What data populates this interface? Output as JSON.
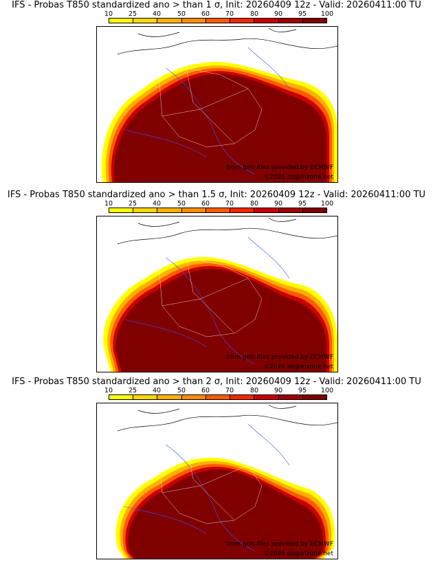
{
  "colorbar": {
    "labels": [
      "10",
      "25",
      "40",
      "50",
      "60",
      "70",
      "80",
      "90",
      "95",
      "100"
    ],
    "colors": [
      "#ffff00",
      "#ffd700",
      "#ffb000",
      "#ff8c00",
      "#ff5a00",
      "#f02800",
      "#c80000",
      "#a00000",
      "#800000"
    ]
  },
  "panels": [
    {
      "title": "IFS - Probas T850  standardized ano > than 1 σ, Init: 20260409 12z - Valid: 20260411:00 TU",
      "threshold_sigma": 1,
      "credit_source": "from grib files provided by ECMWF",
      "credit_copyright": "©2026 sb@irizone.net"
    },
    {
      "title": "IFS - Probas T850  standardized ano > than 1.5 σ, Init: 20260409 12z - Valid: 20260411:00 TU",
      "threshold_sigma": 1.5,
      "credit_source": "from grib files provided by ECMWF",
      "credit_copyright": "©2026 sb@irizone.net"
    },
    {
      "title": "IFS - Probas T850  standardized ano > than 2 σ, Init: 20260409 12z - Valid: 20260411:00 TU",
      "threshold_sigma": 2,
      "credit_source": "from grib files provided by ECMWF",
      "credit_copyright": "©2026 sb@irizone.net"
    }
  ]
}
